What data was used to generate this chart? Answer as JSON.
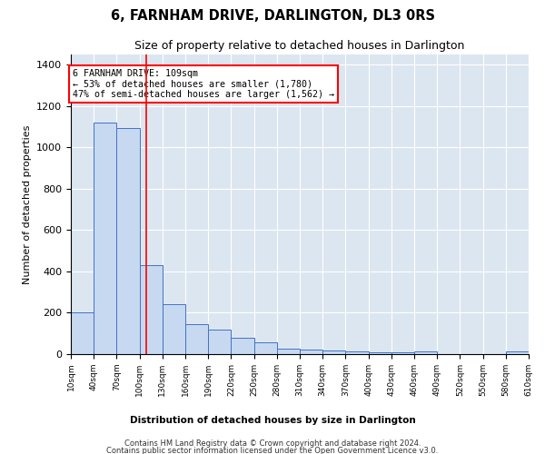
{
  "title": "6, FARNHAM DRIVE, DARLINGTON, DL3 0RS",
  "subtitle": "Size of property relative to detached houses in Darlington",
  "xlabel": "Distribution of detached houses by size in Darlington",
  "ylabel": "Number of detached properties",
  "bar_color": "#c6d9f1",
  "bar_edge_color": "#4472c4",
  "red_line_x": 109,
  "annotation_title": "6 FARNHAM DRIVE: 109sqm",
  "annotation_line1": "← 53% of detached houses are smaller (1,780)",
  "annotation_line2": "47% of semi-detached houses are larger (1,562) →",
  "bin_edges": [
    10,
    40,
    70,
    100,
    130,
    160,
    190,
    220,
    250,
    280,
    310,
    340,
    370,
    400,
    430,
    460,
    490,
    520,
    550,
    580,
    610
  ],
  "bar_heights": [
    200,
    1120,
    1095,
    430,
    240,
    145,
    120,
    78,
    58,
    28,
    20,
    18,
    12,
    10,
    8,
    12,
    0,
    0,
    0,
    12
  ],
  "ylim": [
    0,
    1450
  ],
  "yticks": [
    0,
    200,
    400,
    600,
    800,
    1000,
    1200,
    1400
  ],
  "background_color": "#dce6f1",
  "footer_line1": "Contains HM Land Registry data © Crown copyright and database right 2024.",
  "footer_line2": "Contains public sector information licensed under the Open Government Licence v3.0."
}
